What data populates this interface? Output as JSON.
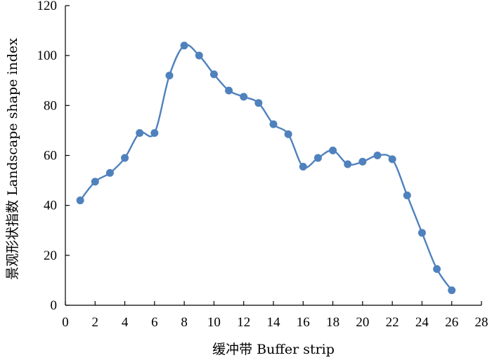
{
  "chart_data": {
    "type": "line",
    "title": "",
    "xlabel": "缓冲带 Buffer strip",
    "ylabel": "景观形状指数 Landscape shape index",
    "xlim": [
      0,
      28
    ],
    "ylim": [
      0,
      120
    ],
    "xticks": [
      0,
      2,
      4,
      6,
      8,
      10,
      12,
      14,
      16,
      18,
      20,
      22,
      24,
      26,
      28
    ],
    "yticks": [
      0,
      20,
      40,
      60,
      80,
      100,
      120
    ],
    "grid": false,
    "legend": "none",
    "series": [
      {
        "color": "#4f81bd",
        "x": [
          1,
          2,
          3,
          4,
          5,
          6,
          7,
          8,
          9,
          10,
          11,
          12,
          13,
          14,
          15,
          16,
          17,
          18,
          19,
          20,
          21,
          22,
          23,
          24,
          25,
          26
        ],
        "y": [
          42,
          49.5,
          53,
          59,
          69,
          69,
          92,
          104,
          100,
          92.5,
          86,
          83.5,
          81,
          72.5,
          68.5,
          55.5,
          59,
          62,
          56.5,
          57.5,
          60,
          58.5,
          44,
          29,
          14.5,
          6
        ]
      }
    ]
  }
}
